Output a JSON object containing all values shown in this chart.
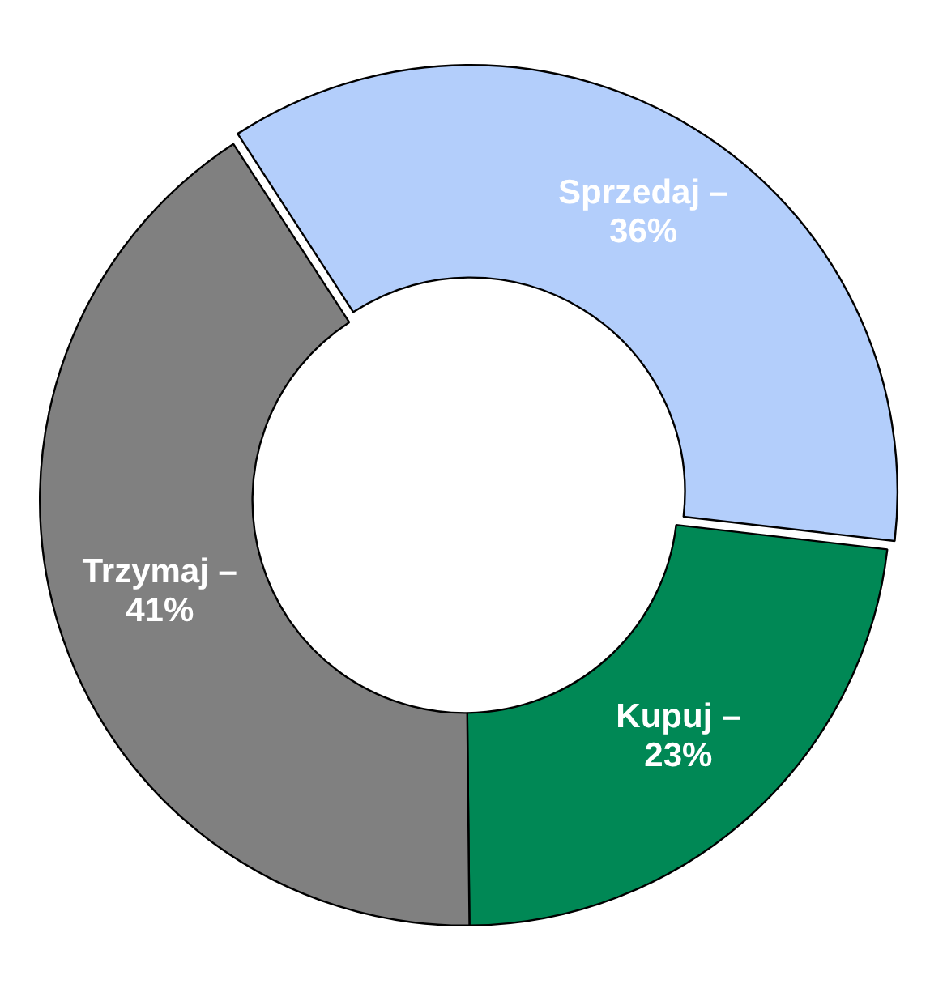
{
  "chart_data": {
    "type": "donut",
    "categories": [
      "Sprzedaj –",
      "Kupuj –",
      "Trzymaj –"
    ],
    "values": [
      36,
      23,
      41
    ],
    "colors": [
      "#b3cefb",
      "#008855",
      "#808080"
    ],
    "value_labels": [
      "36%",
      "23%",
      "41%"
    ],
    "legend": false
  }
}
